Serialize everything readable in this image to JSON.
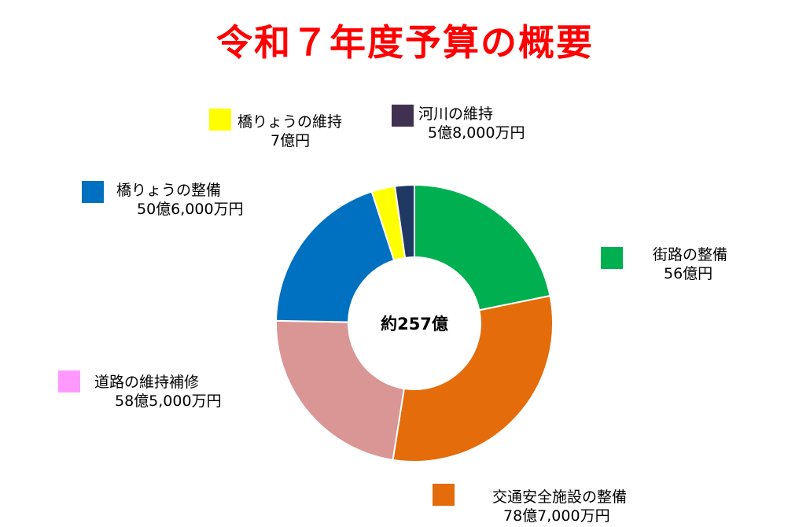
{
  "page": {
    "title": "令和７年度予算の概要"
  },
  "chart_data": {
    "type": "pie",
    "center_label": "約257億",
    "slices": [
      {
        "name": "街路の整備",
        "value_label": "56億円",
        "value": 56.0,
        "color": "#00b050"
      },
      {
        "name": "交通安全施設の整備",
        "value_label": "78億7,000万円",
        "value": 78.7,
        "color": "#e46c0a"
      },
      {
        "name": "道路の維持補修",
        "value_label": "58億5,000万円",
        "value": 58.5,
        "color": "#d99694"
      },
      {
        "name": "橋りょうの整備",
        "value_label": "50億6,000万円",
        "value": 50.6,
        "color": "#0070c0"
      },
      {
        "name": "橋りょうの維持",
        "value_label": "7億円",
        "value": 7.0,
        "color": "#ffff00"
      },
      {
        "name": "河川の維持",
        "value_label": "5億8,000万円",
        "value": 5.8,
        "color": "#1f3864"
      }
    ],
    "legend_swatches": {
      "道路の維持補修": "#ff99ff",
      "河川の維持": "#403151"
    }
  }
}
